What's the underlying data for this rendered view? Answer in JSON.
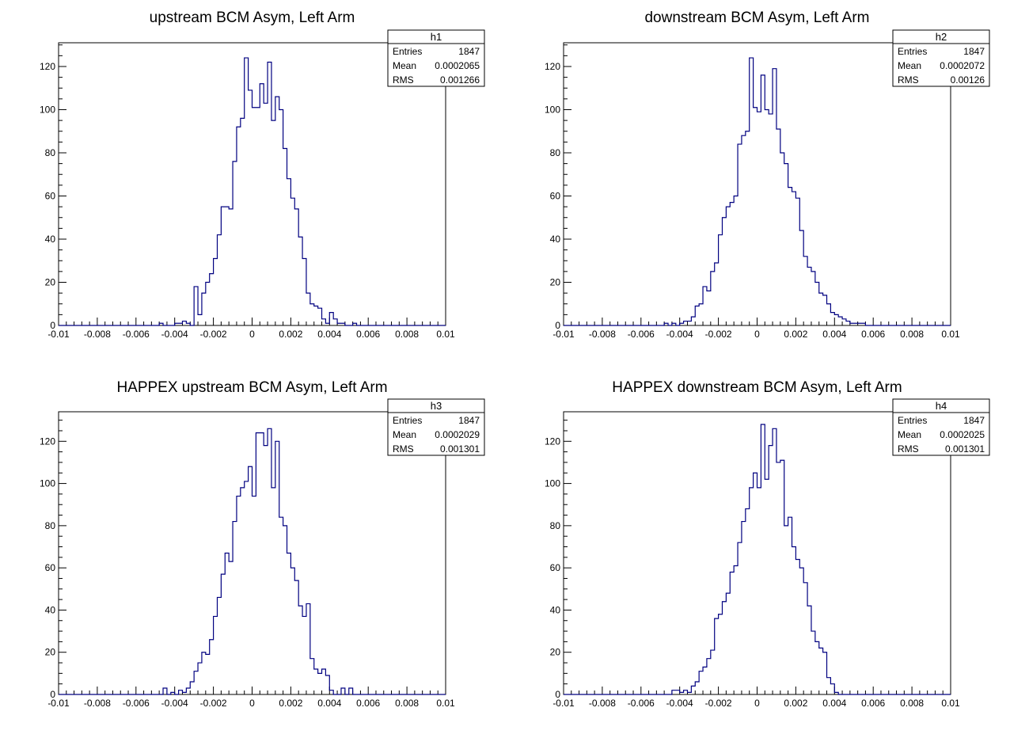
{
  "chart_data": [
    {
      "type": "histogram",
      "title": "upstream BCM Asym, Left Arm",
      "xlabel": "",
      "ylabel": "",
      "xlim": [
        -0.01,
        0.01
      ],
      "ylim": [
        0,
        131
      ],
      "xticks": [
        "-0.01",
        "-0.008",
        "-0.006",
        "-0.004",
        "-0.002",
        "0",
        "0.002",
        "0.004",
        "0.006",
        "0.008",
        "0.01"
      ],
      "yticks": [
        "0",
        "20",
        "40",
        "60",
        "80",
        "100",
        "120"
      ],
      "grid": false,
      "line_color": "#000080",
      "stats": {
        "name": "h1",
        "entries": "1847",
        "mean": "0.0002065",
        "rms": "0.001266",
        "entries_label": "Entries",
        "mean_label": "Mean",
        "rms_label": "RMS"
      },
      "bin_start": -0.0048,
      "bin_width": 0.0002,
      "values": [
        1,
        0,
        0,
        0,
        1,
        1,
        2,
        1,
        0,
        18,
        5,
        15,
        20,
        24,
        31,
        42,
        55,
        55,
        54,
        76,
        92,
        96,
        124,
        109,
        101,
        101,
        112,
        103,
        122,
        95,
        106,
        100,
        82,
        68,
        59,
        54,
        41,
        31,
        15,
        10,
        9,
        8,
        3,
        1,
        6,
        3,
        1,
        1,
        0,
        0,
        1
      ]
    },
    {
      "type": "histogram",
      "title": "downstream BCM Asym, Left Arm",
      "xlabel": "",
      "ylabel": "",
      "xlim": [
        -0.01,
        0.01
      ],
      "ylim": [
        0,
        131
      ],
      "xticks": [
        "-0.01",
        "-0.008",
        "-0.006",
        "-0.004",
        "-0.002",
        "0",
        "0.002",
        "0.004",
        "0.006",
        "0.008",
        "0.01"
      ],
      "yticks": [
        "0",
        "20",
        "40",
        "60",
        "80",
        "100",
        "120"
      ],
      "grid": false,
      "line_color": "#000080",
      "stats": {
        "name": "h2",
        "entries": "1847",
        "mean": "0.0002072",
        "rms": "0.00126",
        "entries_label": "Entries",
        "mean_label": "Mean",
        "rms_label": "RMS"
      },
      "bin_start": -0.0048,
      "bin_width": 0.0002,
      "values": [
        1,
        0,
        1,
        0,
        1,
        2,
        2,
        4,
        9,
        10,
        18,
        16,
        25,
        29,
        42,
        50,
        55,
        57,
        60,
        84,
        88,
        90,
        124,
        101,
        99,
        116,
        100,
        98,
        119,
        91,
        80,
        75,
        64,
        62,
        59,
        44,
        32,
        27,
        25,
        20,
        15,
        14,
        10,
        6,
        5,
        4,
        3,
        2,
        1,
        1,
        1,
        1
      ]
    },
    {
      "type": "histogram",
      "title": "HAPPEX upstream BCM Asym, Left Arm",
      "xlabel": "",
      "ylabel": "",
      "xlim": [
        -0.01,
        0.01
      ],
      "ylim": [
        0,
        134
      ],
      "xticks": [
        "-0.01",
        "-0.008",
        "-0.006",
        "-0.004",
        "-0.002",
        "0",
        "0.002",
        "0.004",
        "0.006",
        "0.008",
        "0.01"
      ],
      "yticks": [
        "0",
        "20",
        "40",
        "60",
        "80",
        "100",
        "120"
      ],
      "grid": false,
      "line_color": "#000080",
      "stats": {
        "name": "h3",
        "entries": "1847",
        "mean": "0.0002029",
        "rms": "0.001301",
        "entries_label": "Entries",
        "mean_label": "Mean",
        "rms_label": "RMS"
      },
      "bin_start": -0.0046,
      "bin_width": 0.0002,
      "values": [
        3,
        0,
        1,
        0,
        2,
        1,
        3,
        6,
        11,
        15,
        20,
        19,
        26,
        37,
        46,
        57,
        67,
        63,
        82,
        94,
        98,
        101,
        108,
        94,
        124,
        124,
        118,
        126,
        98,
        120,
        84,
        80,
        67,
        60,
        54,
        42,
        37,
        43,
        17,
        12,
        10,
        12,
        9,
        2,
        0,
        0,
        3,
        0,
        3
      ]
    },
    {
      "type": "histogram",
      "title": "HAPPEX downstream BCM Asym, Left Arm",
      "xlabel": "",
      "ylabel": "",
      "xlim": [
        -0.01,
        0.01
      ],
      "ylim": [
        0,
        134
      ],
      "xticks": [
        "-0.01",
        "-0.008",
        "-0.006",
        "-0.004",
        "-0.002",
        "0",
        "0.002",
        "0.004",
        "0.006",
        "0.008",
        "0.01"
      ],
      "yticks": [
        "0",
        "20",
        "40",
        "60",
        "80",
        "100",
        "120"
      ],
      "grid": false,
      "line_color": "#000080",
      "stats": {
        "name": "h4",
        "entries": "1847",
        "mean": "0.0002025",
        "rms": "0.001301",
        "entries_label": "Entries",
        "mean_label": "Mean",
        "rms_label": "RMS"
      },
      "bin_start": -0.0044,
      "bin_width": 0.0002,
      "values": [
        2,
        2,
        1,
        2,
        1,
        4,
        6,
        11,
        13,
        17,
        21,
        36,
        38,
        44,
        48,
        58,
        61,
        72,
        82,
        88,
        98,
        105,
        98,
        128,
        102,
        118,
        126,
        110,
        111,
        80,
        84,
        70,
        64,
        60,
        53,
        42,
        30,
        25,
        22,
        20,
        8,
        5,
        1
      ]
    }
  ]
}
